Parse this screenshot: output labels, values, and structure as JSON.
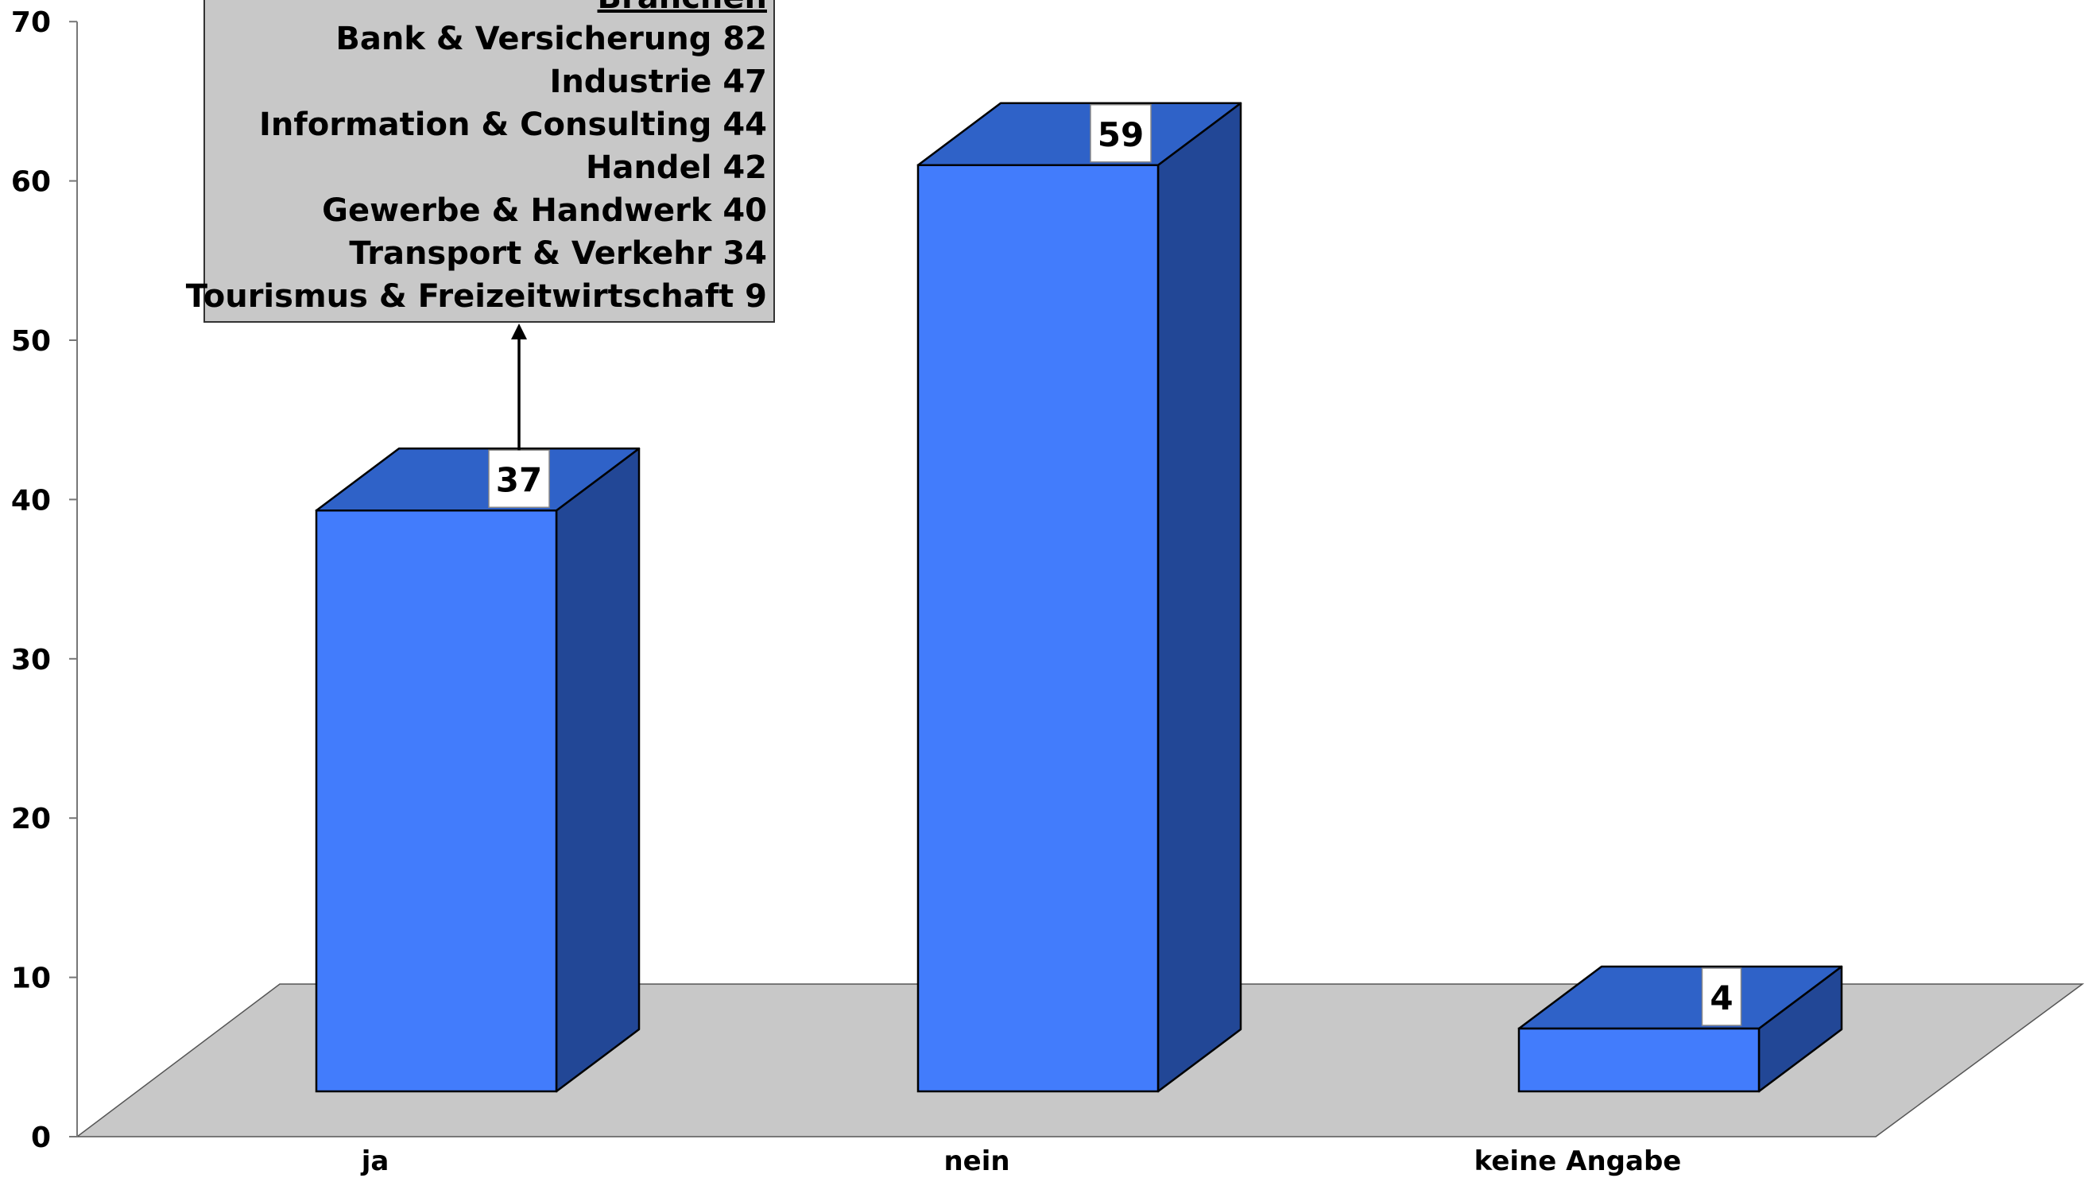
{
  "chart_data": {
    "type": "bar",
    "categories": [
      "ja",
      "nein",
      "keine Angabe"
    ],
    "values": [
      37,
      59,
      4
    ],
    "ylim": [
      0,
      70
    ],
    "yticks": [
      0,
      10,
      20,
      30,
      40,
      50,
      60,
      70
    ],
    "grid": false,
    "style": "3d",
    "colors": {
      "bar_front": "#427cfc",
      "bar_top": "#2f62c8",
      "bar_side": "#224796",
      "floor": "#c8c8c8",
      "annotation_bg": "#c8c8c8"
    },
    "annotation": {
      "attached_to": "ja",
      "title": "Branchen",
      "lines": [
        "Bank & Versicherung 82",
        "Industrie 47",
        "Information & Consulting 44",
        "Handel 42",
        "Gewerbe & Handwerk 40",
        "Transport & Verkehr 34",
        "Tourismus & Freizeitwirtschaft 9"
      ]
    }
  }
}
